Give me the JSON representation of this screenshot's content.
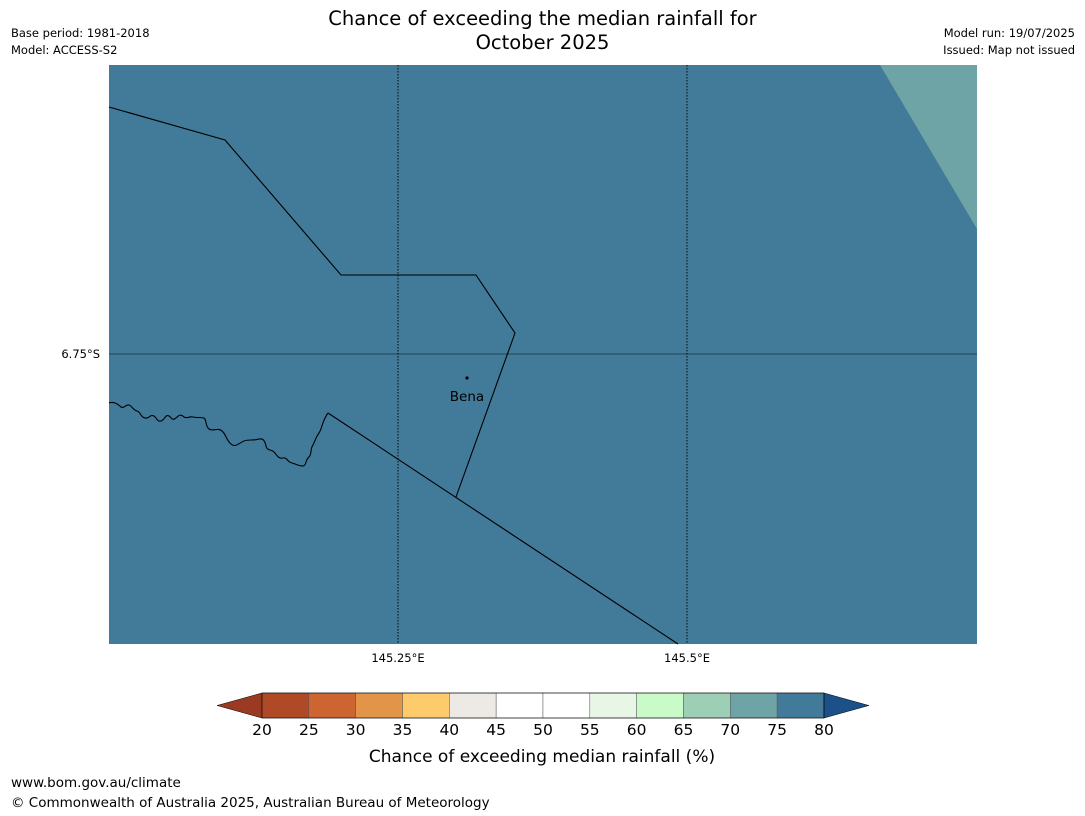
{
  "header": {
    "base_period": "Base period: 1981-2018",
    "model": "Model: ACCESS-S2",
    "model_run": "Model run: 19/07/2025",
    "issued": "Issued: Map not issued",
    "title_line1": "Chance of exceeding the median rainfall for",
    "title_line2": "October 2025"
  },
  "map": {
    "lat_labels": [
      "6.75°S"
    ],
    "lon_labels": [
      "145.25°E",
      "145.5°E"
    ],
    "places": [
      {
        "name": "Bena",
        "lon": 145.31,
        "lat": -6.77
      }
    ],
    "dominant_category": "75-80",
    "secondary_category": "70-75",
    "colors": {
      "cat_75_80": "#427a99",
      "cat_70_75": "#6fa4a6",
      "boundary": "#000000"
    }
  },
  "legend": {
    "title": "Chance of exceeding median rainfall (%)",
    "ticks": [
      "20",
      "25",
      "30",
      "35",
      "40",
      "45",
      "50",
      "55",
      "60",
      "65",
      "70",
      "75",
      "80"
    ],
    "colors": {
      "under": "#9b3a22",
      "bins": [
        "#b04925",
        "#cc6531",
        "#e29448",
        "#fdcb6b",
        "#ede9e4",
        "#ffffff",
        "#ffffff",
        "#e8f6e6",
        "#c9fbc8",
        "#9dcfb6",
        "#6fa4a6",
        "#427a99"
      ],
      "over": "#1b5188"
    }
  },
  "footer": {
    "url": "www.bom.gov.au/climate",
    "copyright": "© Commonwealth of Australia 2025, Australian Bureau of Meteorology"
  }
}
